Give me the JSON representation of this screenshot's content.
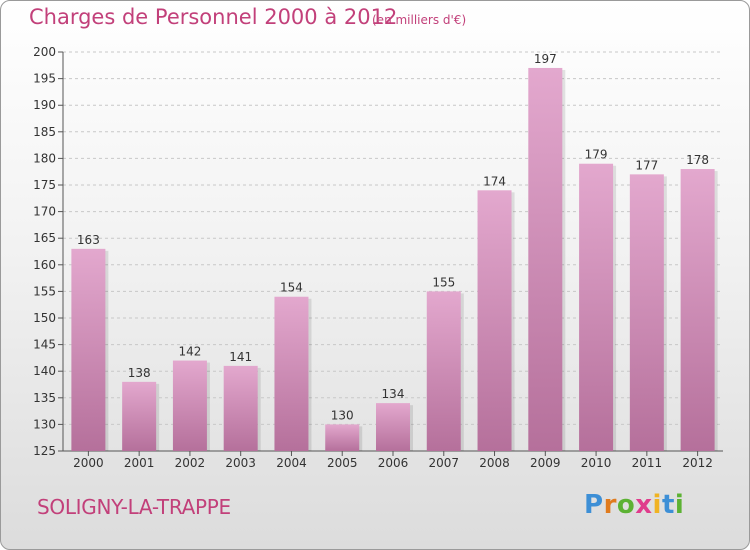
{
  "header": {
    "title": "Charges de Personnel 2000 à 2012",
    "subtitle": "(en milliers d'€)"
  },
  "footer": {
    "commune": "SOLIGNY-LA-TRAPPE",
    "brand": "Proxiti"
  },
  "colors": {
    "title": "#c2407a",
    "bar_top": "#e3a8ce",
    "bar_bottom": "#b5709b",
    "brand_letters": [
      "#3d8fd6",
      "#e07b1e",
      "#5cb233",
      "#e03c8c",
      "#f0b323",
      "#3d8fd6",
      "#5cb233"
    ]
  },
  "chart_data": {
    "type": "bar",
    "categories": [
      "2000",
      "2001",
      "2002",
      "2003",
      "2004",
      "2005",
      "2006",
      "2007",
      "2008",
      "2009",
      "2010",
      "2011",
      "2012"
    ],
    "values": [
      163,
      138,
      142,
      141,
      154,
      130,
      134,
      155,
      174,
      197,
      179,
      177,
      178
    ],
    "ylim": [
      125,
      200
    ],
    "yticks": [
      125,
      130,
      135,
      140,
      145,
      150,
      155,
      160,
      165,
      170,
      175,
      180,
      185,
      190,
      195,
      200
    ],
    "grid": "horizontal dashed",
    "data_labels": true
  }
}
